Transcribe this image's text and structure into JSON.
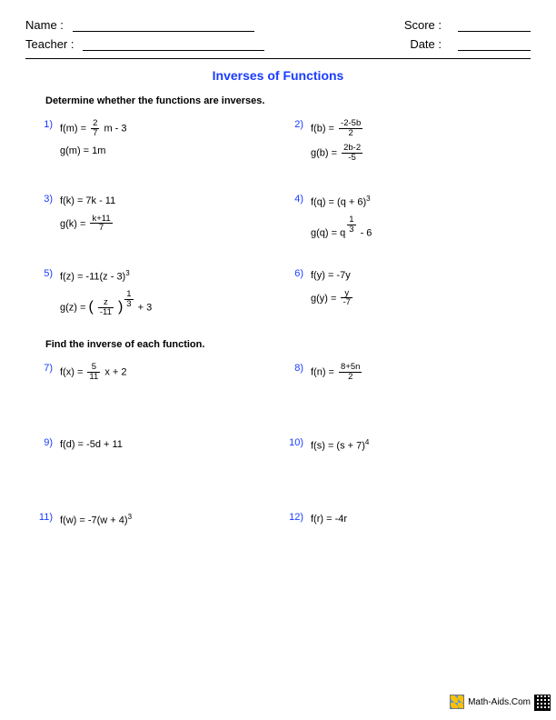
{
  "header": {
    "name_label": "Name :",
    "teacher_label": "Teacher :",
    "score_label": "Score :",
    "date_label": "Date :"
  },
  "title": {
    "text": "Inverses of Functions",
    "color": "#1a3cff"
  },
  "section1_instruction": "Determine whether the functions are inverses.",
  "section2_instruction": "Find the inverse of each function.",
  "number_color": "#1a3cff",
  "section1": [
    {
      "num": "1)",
      "f_prefix": "f(m) = ",
      "f_frac_num": "2",
      "f_frac_den": "7",
      "f_suffix": " m - 3",
      "g": "g(m) = 1m",
      "height": 82
    },
    {
      "num": "2)",
      "f_prefix": "f(b) = ",
      "f_frac_num": "-2-5b",
      "f_frac_den": "2",
      "f_suffix": "",
      "g_prefix": "g(b) = ",
      "g_frac_num": "2b-2",
      "g_frac_den": "-5",
      "height": 82
    },
    {
      "num": "3)",
      "f": "f(k) = 7k - 11",
      "g_prefix": "g(k) = ",
      "g_frac_num": "k+11",
      "g_frac_den": "7",
      "height": 82
    },
    {
      "num": "4)",
      "f_html": "f(q) = (q + 6)<span class='sup'>3</span>",
      "g_html": "g(q) = q<span class='frac' style='vertical-align:super;'><span class='num'>1</span><span class='den'>3</span></span> - 6",
      "height": 82
    },
    {
      "num": "5)",
      "f_html": "f(z) = -11(z - 3)<span class='sup'>3</span>",
      "g_html": "g(z) = <span class='paren-big'>(</span> <span class='frac'><span class='num'>z</span><span class='den'>-11</span></span> <span class='paren-big'>)</span><span class='frac' style='vertical-align:super;'><span class='num'>1</span><span class='den'>3</span></span> + 3",
      "height": 78
    },
    {
      "num": "6)",
      "f": "f(y) = -7y",
      "g_prefix": "g(y) = ",
      "g_frac_num": "y",
      "g_frac_den": "-7",
      "height": 78
    }
  ],
  "section2": [
    {
      "num": "7)",
      "f_prefix": "f(x) = ",
      "f_frac_num": "5",
      "f_frac_den": "11",
      "f_suffix": " x + 2",
      "height": 82
    },
    {
      "num": "8)",
      "f_prefix": "f(n) = ",
      "f_frac_num": "8+5n",
      "f_frac_den": "2",
      "f_suffix": "",
      "height": 82
    },
    {
      "num": "9)",
      "f": "f(d) = -5d + 11",
      "height": 82
    },
    {
      "num": "10)",
      "f_html": "f(s) = (s + 7)<span class='sup'>4</span>",
      "height": 82
    },
    {
      "num": "11)",
      "f_html": "f(w) = -7(w + 4)<span class='sup'>3</span>",
      "height": 40
    },
    {
      "num": "12)",
      "f": "f(r) = -4r",
      "height": 40
    }
  ],
  "footer": {
    "site": "Math-Aids.Com"
  }
}
